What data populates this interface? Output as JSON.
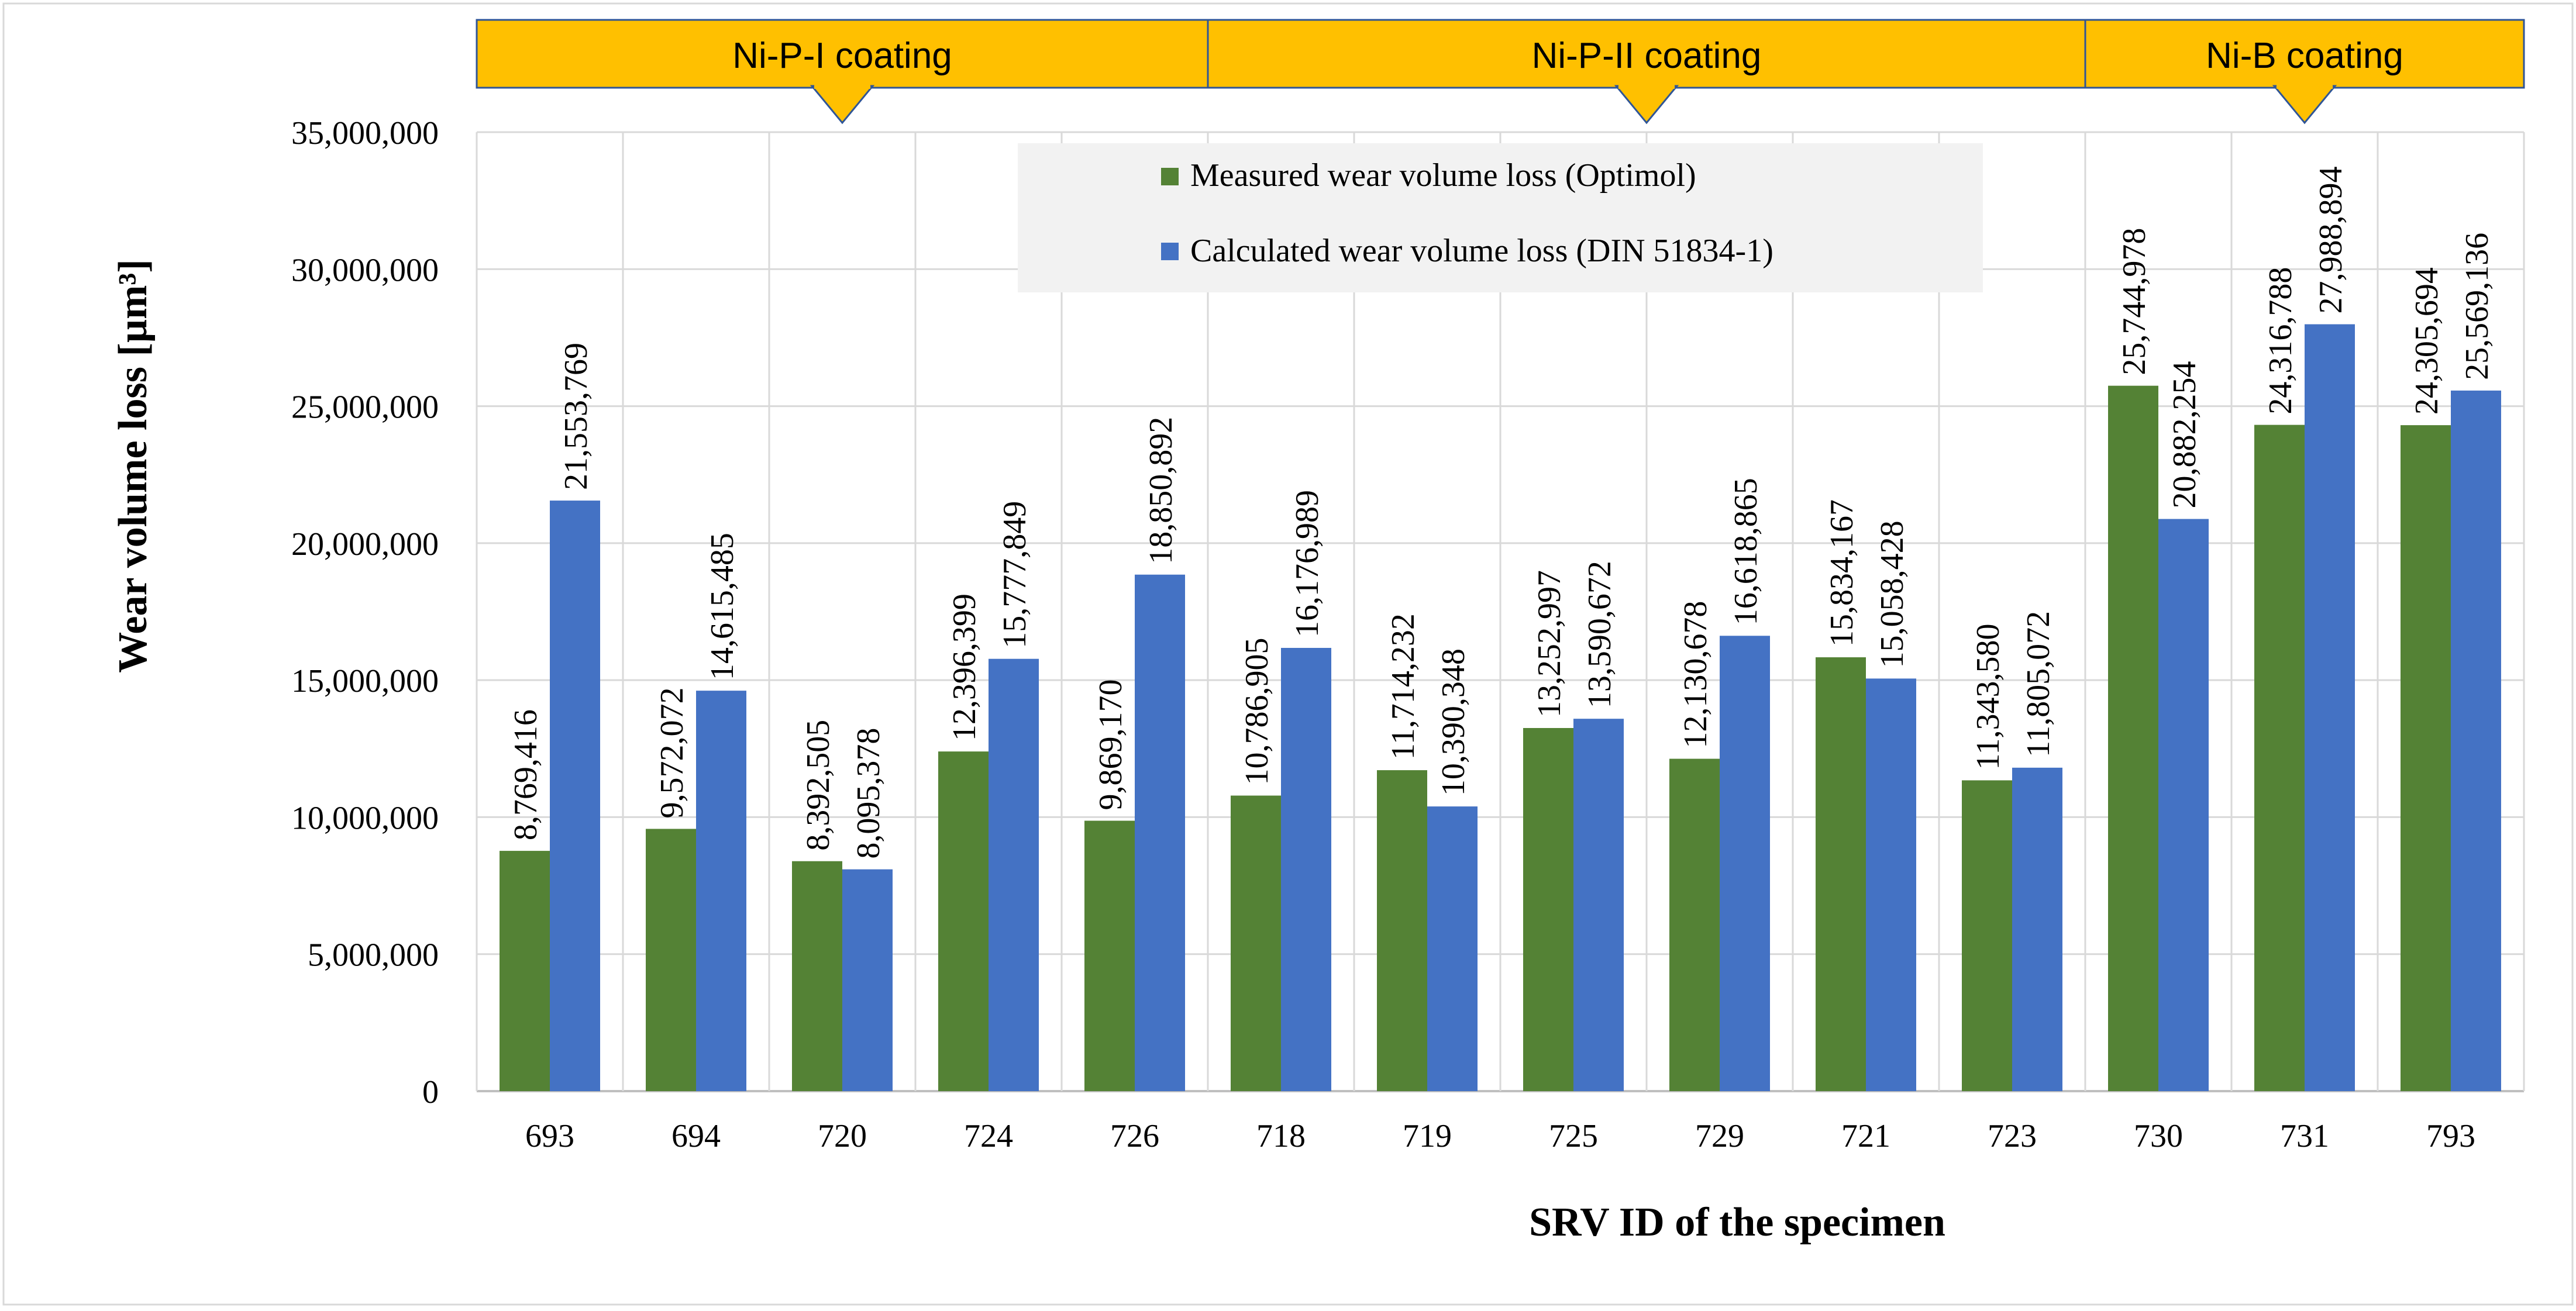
{
  "chart_data": {
    "type": "bar",
    "title": "",
    "xlabel": "SRV ID of the specimen",
    "ylabel": "Wear volume loss [µm³]",
    "ylim": [
      0,
      35000000
    ],
    "yticks": [
      0,
      5000000,
      10000000,
      15000000,
      20000000,
      25000000,
      30000000,
      35000000
    ],
    "ytick_labels": [
      "0",
      "5,000,000",
      "10,000,000",
      "15,000,000",
      "20,000,000",
      "25,000,000",
      "30,000,000",
      "35,000,000"
    ],
    "grid": true,
    "legend_position": "top-center",
    "categories": [
      "693",
      "694",
      "720",
      "724",
      "726",
      "718",
      "719",
      "725",
      "729",
      "721",
      "723",
      "730",
      "731",
      "793"
    ],
    "series": [
      {
        "name": "Measured wear volume loss (Optimol)",
        "color": "#548235",
        "values": [
          8769416,
          9572072,
          8392505,
          12396399,
          9869170,
          10786905,
          11714232,
          13252997,
          12130678,
          15834167,
          11343580,
          25744978,
          24316788,
          24305694
        ],
        "labels": [
          "8,769,416",
          "9,572,072",
          "8,392,505",
          "12,396,399",
          "9,869,170",
          "10,786,905",
          "11,714,232",
          "13,252,997",
          "12,130,678",
          "15,834,167",
          "11,343,580",
          "25,744,978",
          "24,316,788",
          "24,305,694"
        ]
      },
      {
        "name": "Calculated wear volume loss (DIN 51834-1)",
        "color": "#4472C4",
        "values": [
          21553769,
          14615485,
          8095378,
          15777849,
          18850892,
          16176989,
          10390348,
          13590672,
          16618865,
          15058428,
          11805072,
          20882254,
          27988894,
          25569136
        ],
        "labels": [
          "21,553,769",
          "14,615,485",
          "8,095,378",
          "15,777,849",
          "18,850,892",
          "16,176,989",
          "10,390,348",
          "13,590,672",
          "16,618,865",
          "15,058,428",
          "11,805,072",
          "20,882,254",
          "27,988,894",
          "25,569,136"
        ]
      }
    ],
    "groups": [
      {
        "label": "Ni-P-I coating",
        "start_index": 0,
        "end_index": 4
      },
      {
        "label": "Ni-P-II coating",
        "start_index": 5,
        "end_index": 10
      },
      {
        "label": "Ni-B coating",
        "start_index": 11,
        "end_index": 13
      }
    ],
    "group_banner_color": "#FFC000",
    "group_banner_border": "#2F5597"
  }
}
